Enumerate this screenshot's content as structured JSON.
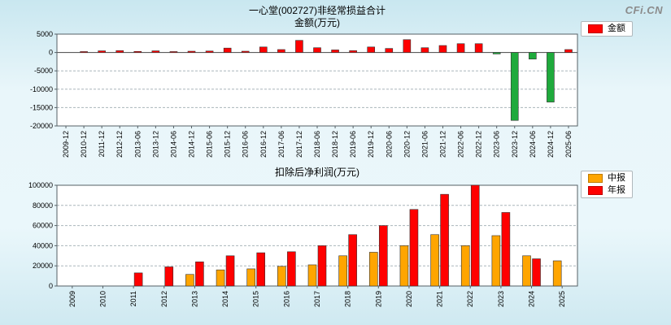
{
  "page": {
    "watermark": "CFi.CN"
  },
  "chart_data": [
    {
      "type": "bar",
      "title": "一心堂(002727)非经常损益合计",
      "subtitle": "金额(万元)",
      "legend": [
        {
          "label": "金额",
          "color": "#ff0000"
        }
      ],
      "categories": [
        "2009-12",
        "2010-12",
        "2011-12",
        "2012-12",
        "2013-06",
        "2013-12",
        "2014-06",
        "2014-12",
        "2015-06",
        "2015-12",
        "2016-06",
        "2016-12",
        "2017-06",
        "2017-12",
        "2018-06",
        "2018-12",
        "2019-06",
        "2019-12",
        "2020-06",
        "2020-12",
        "2021-06",
        "2021-12",
        "2022-06",
        "2022-12",
        "2023-06",
        "2023-12",
        "2024-06",
        "2024-12",
        "2025-06"
      ],
      "values": [
        null,
        250,
        450,
        500,
        300,
        450,
        250,
        350,
        400,
        1200,
        350,
        1500,
        800,
        3300,
        1300,
        700,
        500,
        1500,
        1100,
        3500,
        1300,
        1900,
        2400,
        2400,
        -400,
        -18500,
        -1800,
        -13500,
        800
      ],
      "positive_color": "#ff0000",
      "negative_color": "#1faa3c",
      "ylim": [
        -20000,
        5000
      ],
      "yticks": [
        5000,
        0,
        -5000,
        -10000,
        -15000,
        -20000
      ],
      "grid": "dashed",
      "zero_line": true,
      "legend_position": "right"
    },
    {
      "type": "bar",
      "title": "扣除后净利润(万元)",
      "legend": [
        {
          "label": "中报",
          "color": "#ffa500"
        },
        {
          "label": "年报",
          "color": "#ff0000"
        }
      ],
      "categories": [
        "2009",
        "2010",
        "2011",
        "2012",
        "2013",
        "2014",
        "2015",
        "2016",
        "2017",
        "2018",
        "2019",
        "2020",
        "2021",
        "2022",
        "2023",
        "2024",
        "2025"
      ],
      "series": [
        {
          "name": "中报",
          "color": "#ffa500",
          "values": [
            null,
            null,
            null,
            null,
            11500,
            16000,
            17000,
            19500,
            21000,
            30000,
            33500,
            40000,
            51000,
            40000,
            50000,
            30000,
            25000
          ]
        },
        {
          "name": "年报",
          "color": "#ff0000",
          "values": [
            null,
            null,
            13000,
            19000,
            24000,
            30000,
            33000,
            34000,
            40000,
            51000,
            60000,
            76000,
            91000,
            100000,
            73000,
            27000,
            null
          ]
        }
      ],
      "ylim": [
        0,
        100000
      ],
      "yticks": [
        0,
        20000,
        40000,
        60000,
        80000,
        100000
      ],
      "grid": "dashed",
      "legend_position": "right"
    }
  ]
}
